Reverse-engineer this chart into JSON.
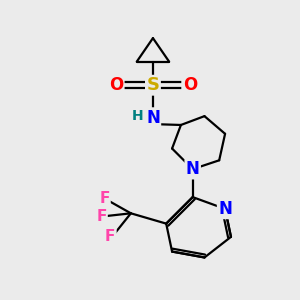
{
  "bg_color": "#ebebeb",
  "bond_color": "#000000",
  "bond_width": 1.6,
  "atom_colors": {
    "S": "#ccaa00",
    "O": "#ff0000",
    "N": "#0000ff",
    "F": "#ff44aa",
    "H": "#008080",
    "C": "#000000"
  }
}
